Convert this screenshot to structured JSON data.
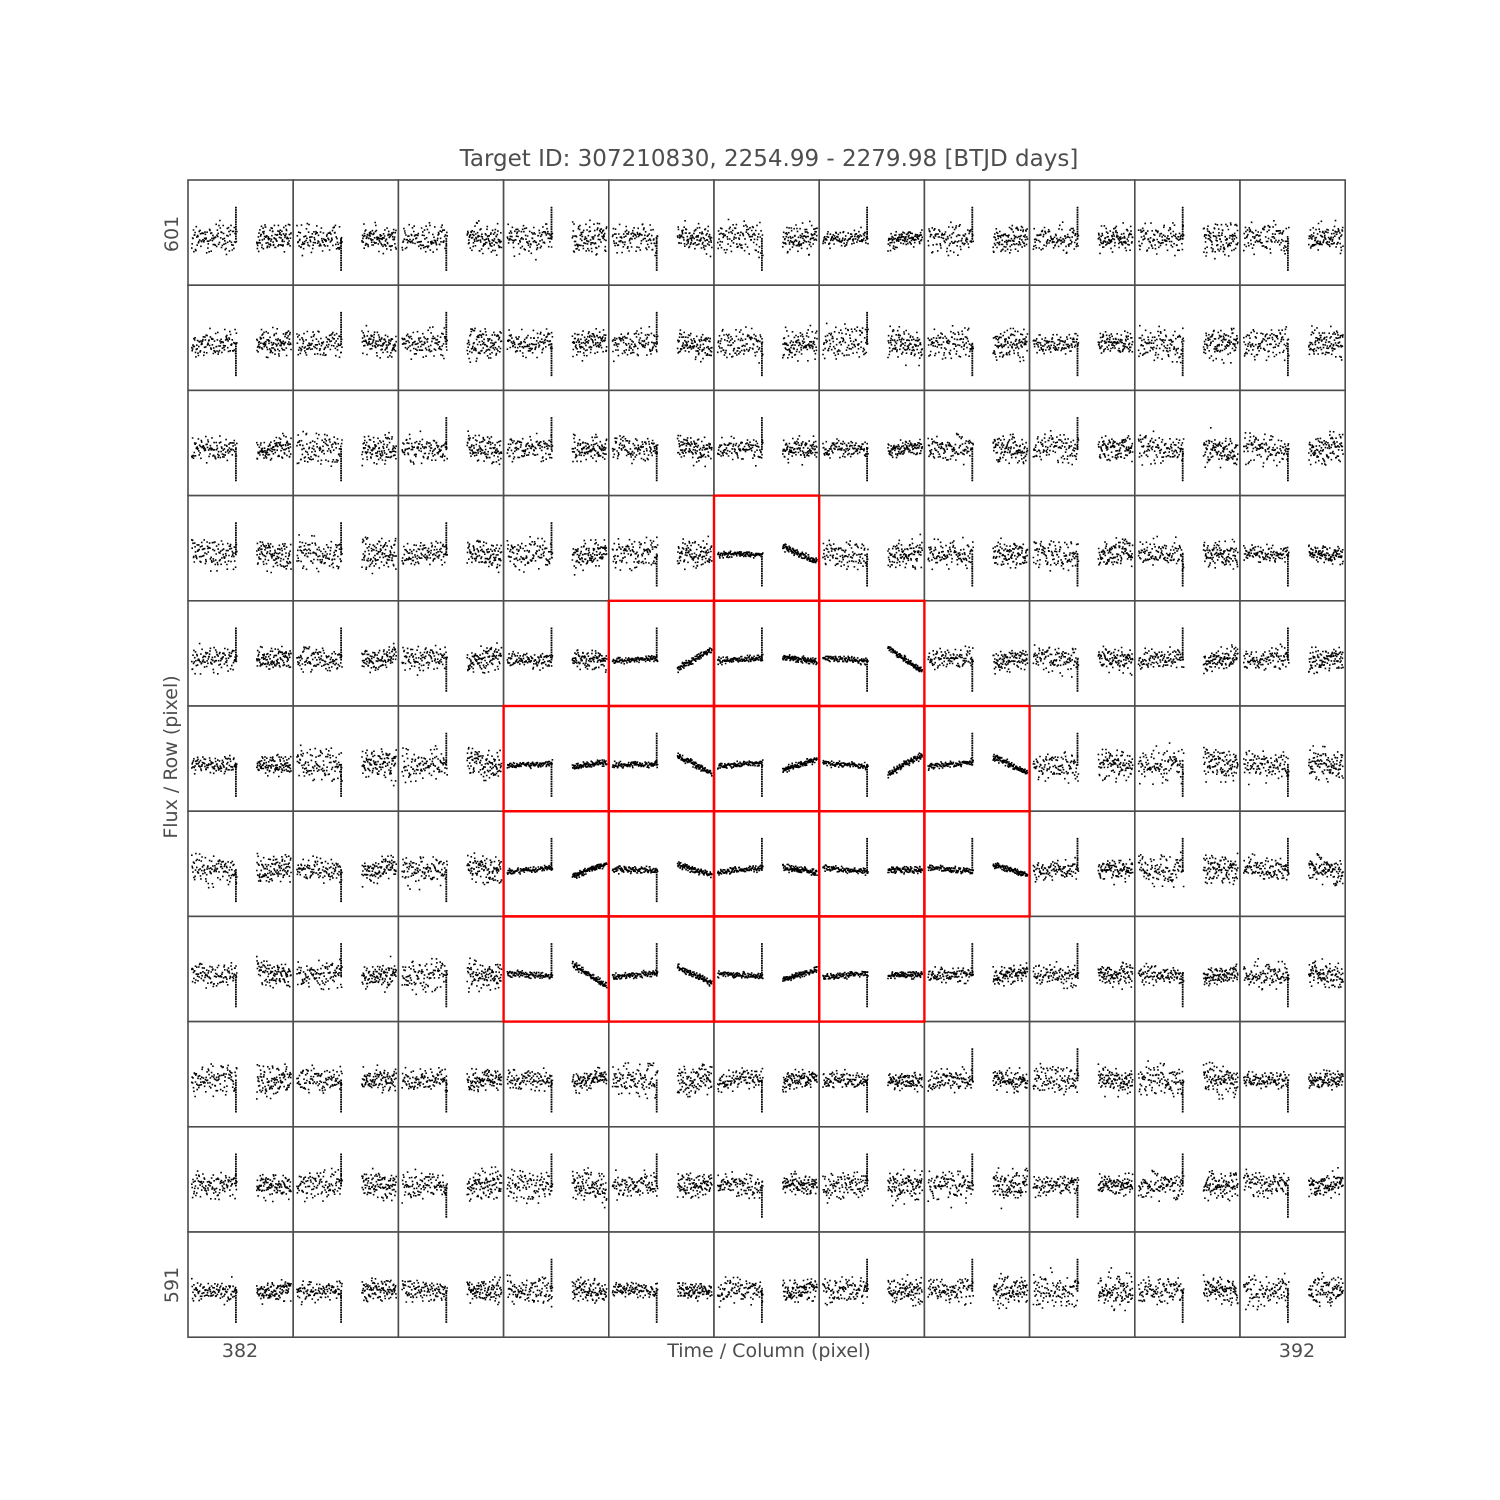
{
  "chart_data": {
    "type": "scatter",
    "title": "Target ID: 307210830, 2254.99 - 2279.98 [BTJD days]",
    "xlabel": "Time / Column (pixel)",
    "ylabel": "Flux / Row (pixel)",
    "column_range": [
      382,
      392
    ],
    "row_range": [
      591,
      601
    ],
    "x_tick_labels": [
      "382",
      "392"
    ],
    "y_tick_labels": [
      "601",
      "591"
    ],
    "time_range": [
      2254.99,
      2279.98
    ],
    "grid_columns": 11,
    "grid_rows": 11,
    "aperture_pixels": [
      {
        "column": 387,
        "row": 598
      },
      {
        "column": 386,
        "row": 597
      },
      {
        "column": 387,
        "row": 597
      },
      {
        "column": 388,
        "row": 597
      },
      {
        "column": 385,
        "row": 596
      },
      {
        "column": 386,
        "row": 596
      },
      {
        "column": 387,
        "row": 596
      },
      {
        "column": 388,
        "row": 596
      },
      {
        "column": 389,
        "row": 596
      },
      {
        "column": 385,
        "row": 595
      },
      {
        "column": 386,
        "row": 595
      },
      {
        "column": 387,
        "row": 595
      },
      {
        "column": 388,
        "row": 595
      },
      {
        "column": 389,
        "row": 595
      },
      {
        "column": 385,
        "row": 594
      },
      {
        "column": 386,
        "row": 594
      },
      {
        "column": 387,
        "row": 594
      },
      {
        "column": 388,
        "row": 594
      }
    ],
    "colors": {
      "points": "#000000",
      "aperture": "#ff0000",
      "frame": "#4d4d4d"
    }
  }
}
